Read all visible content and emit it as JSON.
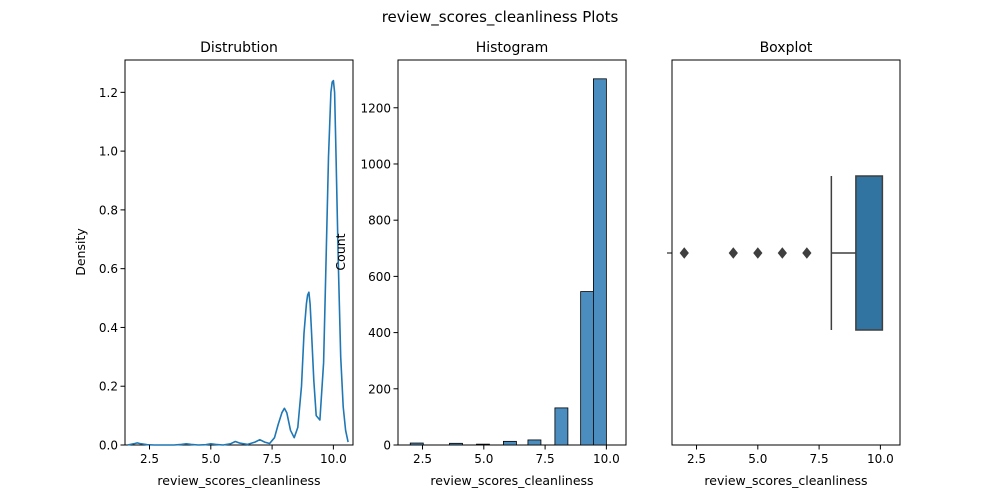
{
  "figure": {
    "title": "review_scores_cleanliness Plots"
  },
  "chart_data": [
    {
      "type": "line",
      "title": "Distrubtion",
      "xlabel": "review_scores_cleanliness",
      "ylabel": "Density",
      "xlim": [
        1.5,
        10.8
      ],
      "ylim": [
        0,
        1.31
      ],
      "xticks": [
        2.5,
        5.0,
        7.5,
        10.0
      ],
      "xticklabels": [
        "2.5",
        "5.0",
        "7.5",
        "10.0"
      ],
      "yticks": [
        0.0,
        0.2,
        0.4,
        0.6,
        0.8,
        1.0,
        1.2
      ],
      "yticklabels": [
        "0.0",
        "0.2",
        "0.4",
        "0.6",
        "0.8",
        "1.0",
        "1.2"
      ],
      "grid": false,
      "color": "#1f77b4",
      "series": [
        {
          "x": [
            1.6,
            1.9,
            2.0,
            2.1,
            2.4,
            2.7,
            3.0,
            3.5,
            3.8,
            4.0,
            4.2,
            4.5,
            4.8,
            5.0,
            5.2,
            5.5,
            5.8,
            6.0,
            6.2,
            6.5,
            6.8,
            7.0,
            7.2,
            7.4,
            7.6,
            7.75,
            7.9,
            8.0,
            8.1,
            8.25,
            8.4,
            8.55,
            8.7,
            8.8,
            8.9,
            8.95,
            9.0,
            9.05,
            9.1,
            9.2,
            9.3,
            9.45,
            9.6,
            9.7,
            9.8,
            9.9,
            9.95,
            10.0,
            10.05,
            10.1,
            10.2,
            10.3,
            10.4,
            10.5,
            10.6
          ],
          "y": [
            0.0,
            0.005,
            0.007,
            0.005,
            0.001,
            0.0,
            0.0,
            0.0,
            0.002,
            0.004,
            0.002,
            0.0,
            0.001,
            0.004,
            0.002,
            0.0,
            0.004,
            0.012,
            0.006,
            0.002,
            0.01,
            0.018,
            0.01,
            0.005,
            0.025,
            0.07,
            0.11,
            0.125,
            0.11,
            0.05,
            0.025,
            0.06,
            0.2,
            0.38,
            0.48,
            0.51,
            0.52,
            0.48,
            0.4,
            0.22,
            0.1,
            0.085,
            0.28,
            0.62,
            0.98,
            1.2,
            1.235,
            1.24,
            1.2,
            1.02,
            0.62,
            0.3,
            0.13,
            0.05,
            0.01
          ]
        }
      ]
    },
    {
      "type": "bar",
      "title": "Histogram",
      "xlabel": "review_scores_cleanliness",
      "ylabel": "Count",
      "xlim": [
        1.5,
        10.8
      ],
      "ylim": [
        0,
        1370
      ],
      "xticks": [
        2.5,
        5.0,
        7.5,
        10.0
      ],
      "xticklabels": [
        "2.5",
        "5.0",
        "7.5",
        "10.0"
      ],
      "yticks": [
        0,
        200,
        400,
        600,
        800,
        1000,
        1200
      ],
      "yticklabels": [
        "0",
        "200",
        "400",
        "600",
        "800",
        "1000",
        "1200"
      ],
      "grid": false,
      "color": "#4c8dbf",
      "bin_width": 0.53,
      "bins": [
        {
          "x0": 2.0,
          "value": 7
        },
        {
          "x0": 3.6,
          "value": 6
        },
        {
          "x0": 4.7,
          "value": 3
        },
        {
          "x0": 5.8,
          "value": 13
        },
        {
          "x0": 6.8,
          "value": 18
        },
        {
          "x0": 7.9,
          "value": 132
        },
        {
          "x0": 8.95,
          "value": 546
        },
        {
          "x0": 9.47,
          "value": 1303
        }
      ]
    },
    {
      "type": "box",
      "title": "Boxplot",
      "xlabel": "review_scores_cleanliness",
      "xlim": [
        1.5,
        10.8
      ],
      "xticks": [
        2.5,
        5.0,
        7.5,
        10.0
      ],
      "xticklabels": [
        "2.5",
        "5.0",
        "7.5",
        "10.0"
      ],
      "grid": false,
      "color": "#3274a1",
      "whisker_low": 8,
      "q1": 9,
      "median": 10,
      "q3": 10,
      "whisker_high": 10,
      "outliers": [
        2,
        4,
        5,
        6,
        7
      ]
    }
  ]
}
